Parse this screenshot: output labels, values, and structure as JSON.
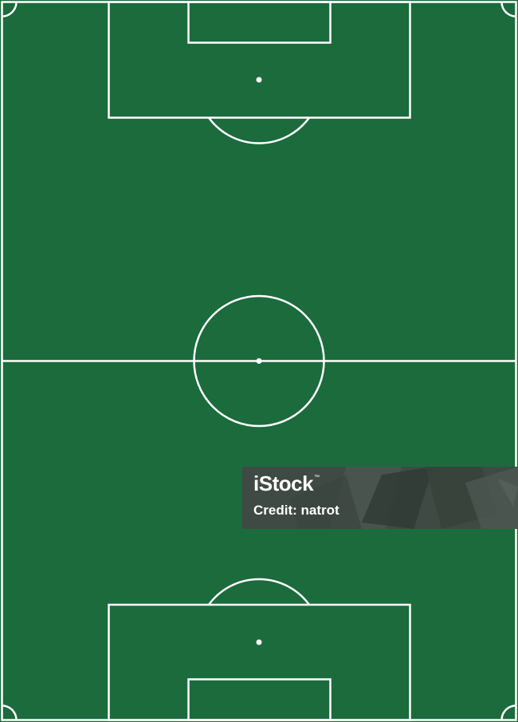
{
  "pitch": {
    "grass_color": "#1b6b3d",
    "line_color": "#ffffff"
  },
  "watermark": {
    "brand": "iStock",
    "trademark": "™",
    "credit": "Credit: natrot",
    "background_color": "#404a44"
  }
}
